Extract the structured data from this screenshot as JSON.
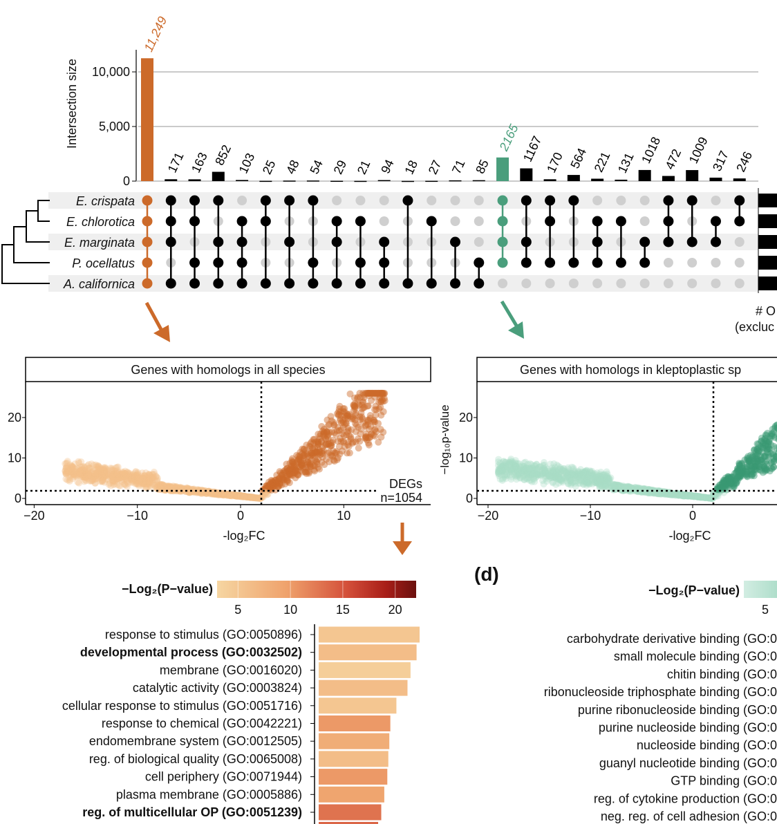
{
  "colors": {
    "orange": "#cc6a2a",
    "green": "#4a9e7c",
    "black": "#000000",
    "inactive_dot": "#cfcfcf",
    "row_shade": "#efefef"
  },
  "chart_data": [
    {
      "type": "bar",
      "subtype": "upset",
      "ylabel": "Intersection size",
      "ylim": [
        0,
        12000
      ],
      "yticks": [
        "0",
        "5,000",
        "10,000"
      ],
      "ytick_values": [
        0,
        5000,
        10000
      ],
      "grid": true,
      "sets": [
        "E. crispata",
        "E. chlorotica",
        "E. marginata",
        "P. ocellatus",
        "A. californica"
      ],
      "value_labels": [
        "11,249",
        "171",
        "163",
        "852",
        "103",
        "25",
        "48",
        "54",
        "29",
        "21",
        "94",
        "18",
        "27",
        "71",
        "85",
        "2165",
        "1167",
        "170",
        "564",
        "221",
        "131",
        "1018",
        "472",
        "1009",
        "317",
        "246"
      ],
      "values": [
        11249,
        171,
        163,
        852,
        103,
        25,
        48,
        54,
        29,
        21,
        94,
        18,
        27,
        71,
        85,
        2165,
        1167,
        170,
        564,
        221,
        131,
        1018,
        472,
        1009,
        317,
        246
      ],
      "highlight": {
        "0": "orange",
        "15": "green"
      },
      "membership": [
        [
          1,
          1,
          1,
          1,
          1
        ],
        [
          1,
          1,
          1,
          0,
          1
        ],
        [
          1,
          1,
          0,
          1,
          1
        ],
        [
          1,
          0,
          1,
          1,
          1
        ],
        [
          0,
          1,
          1,
          1,
          1
        ],
        [
          1,
          1,
          0,
          0,
          1
        ],
        [
          1,
          0,
          1,
          0,
          1
        ],
        [
          1,
          0,
          0,
          1,
          1
        ],
        [
          0,
          1,
          1,
          0,
          1
        ],
        [
          0,
          1,
          0,
          1,
          1
        ],
        [
          0,
          0,
          1,
          1,
          1
        ],
        [
          1,
          0,
          0,
          0,
          1
        ],
        [
          0,
          1,
          0,
          0,
          1
        ],
        [
          0,
          0,
          1,
          0,
          1
        ],
        [
          0,
          0,
          0,
          1,
          1
        ],
        [
          1,
          1,
          1,
          1,
          0
        ],
        [
          1,
          0,
          1,
          1,
          0
        ],
        [
          1,
          1,
          0,
          1,
          0
        ],
        [
          1,
          0,
          0,
          1,
          0
        ],
        [
          0,
          1,
          1,
          1,
          0
        ],
        [
          0,
          1,
          0,
          1,
          0
        ],
        [
          0,
          0,
          1,
          1,
          0
        ],
        [
          1,
          1,
          1,
          0,
          0
        ],
        [
          1,
          0,
          1,
          0,
          0
        ],
        [
          0,
          1,
          1,
          0,
          0
        ],
        [
          1,
          1,
          0,
          0,
          0
        ]
      ],
      "set_size_label": [
        "# O",
        "(excluc"
      ]
    },
    {
      "type": "scatter",
      "title": "Genes with homologs in all species",
      "xlabel": "-log₂FC",
      "xlim": [
        -21,
        18
      ],
      "ylim": [
        -1,
        27
      ],
      "xticks": [
        "−20",
        "−10",
        "0",
        "10"
      ],
      "xtick_values": [
        -20,
        -10,
        0,
        10
      ],
      "yticks": [
        "0",
        "10",
        "20"
      ],
      "ytick_values": [
        0,
        10,
        20
      ],
      "thresholds": {
        "x": 2,
        "y": 1.9
      },
      "annotation": [
        "DEGs",
        "n=1054"
      ],
      "color_low": "#f4c089",
      "color_high": "#cc6a2a"
    },
    {
      "type": "scatter",
      "title": "Genes with homologs in kleptoplastic sp",
      "xlabel": "-log₂FC",
      "ylabel": "−log₁₀p-value",
      "xlim": [
        -21,
        9
      ],
      "ylim": [
        -1,
        27
      ],
      "xticks": [
        "−20",
        "−10",
        "0"
      ],
      "xtick_values": [
        -20,
        -10,
        0
      ],
      "yticks": [
        "0",
        "10",
        "20"
      ],
      "ytick_values": [
        0,
        10,
        20
      ],
      "thresholds": {
        "x": 2,
        "y": 1.9
      },
      "color_low": "#a9dcc6",
      "color_high": "#3a9a74"
    },
    {
      "type": "bar",
      "orientation": "horizontal",
      "colorbar_label": "−Log₂(P−value)",
      "colorbar_ticks": [
        "5",
        "10",
        "15",
        "20"
      ],
      "colorbar_tick_values": [
        5,
        10,
        15,
        20
      ],
      "colorbar_range": [
        3,
        22
      ],
      "categories": [
        "response to stimulus (GO:0050896)",
        "developmental process (GO:0032502)",
        "membrane (GO:0016020)",
        "catalytic activity (GO:0003824)",
        "cellular response to stimulus (GO:0051716)",
        "response to chemical (GO:0042221)",
        "endomembrane system (GO:0012505)",
        "reg. of biological quality (GO:0065008)",
        "cell periphery (GO:0071944)",
        "plasma membrane (GO:0005886)",
        "reg. of multicellular OP (GO:0051239)"
      ],
      "bold": [
        false,
        true,
        false,
        false,
        false,
        false,
        false,
        false,
        false,
        false,
        true
      ],
      "relative_values": [
        1.0,
        0.97,
        0.91,
        0.88,
        0.77,
        0.71,
        0.7,
        0.69,
        0.68,
        0.65,
        0.62
      ],
      "color_values": [
        5,
        6,
        4,
        6,
        5,
        10,
        8,
        6,
        10,
        9,
        13
      ]
    },
    {
      "type": "bar",
      "orientation": "horizontal",
      "panel_label": "(d)",
      "colorbar_label": "−Log₂(P−value)",
      "colorbar_ticks": [
        "5"
      ],
      "categories": [
        "carbohydrate derivative binding (GO:0",
        "small molecule binding (GO:0",
        "chitin binding (GO:0",
        "ribonucleoside triphosphate binding (GO:0",
        "purine ribonucleoside binding (GO:0",
        "purine nucleoside binding (GO:0",
        "nucleoside binding (GO:0",
        "guanyl nucleotide binding (GO:0",
        "GTP binding (GO:0",
        "reg. of cytokine production (GO:0",
        "neg. reg. of cell adhesion (GO:0"
      ]
    }
  ]
}
